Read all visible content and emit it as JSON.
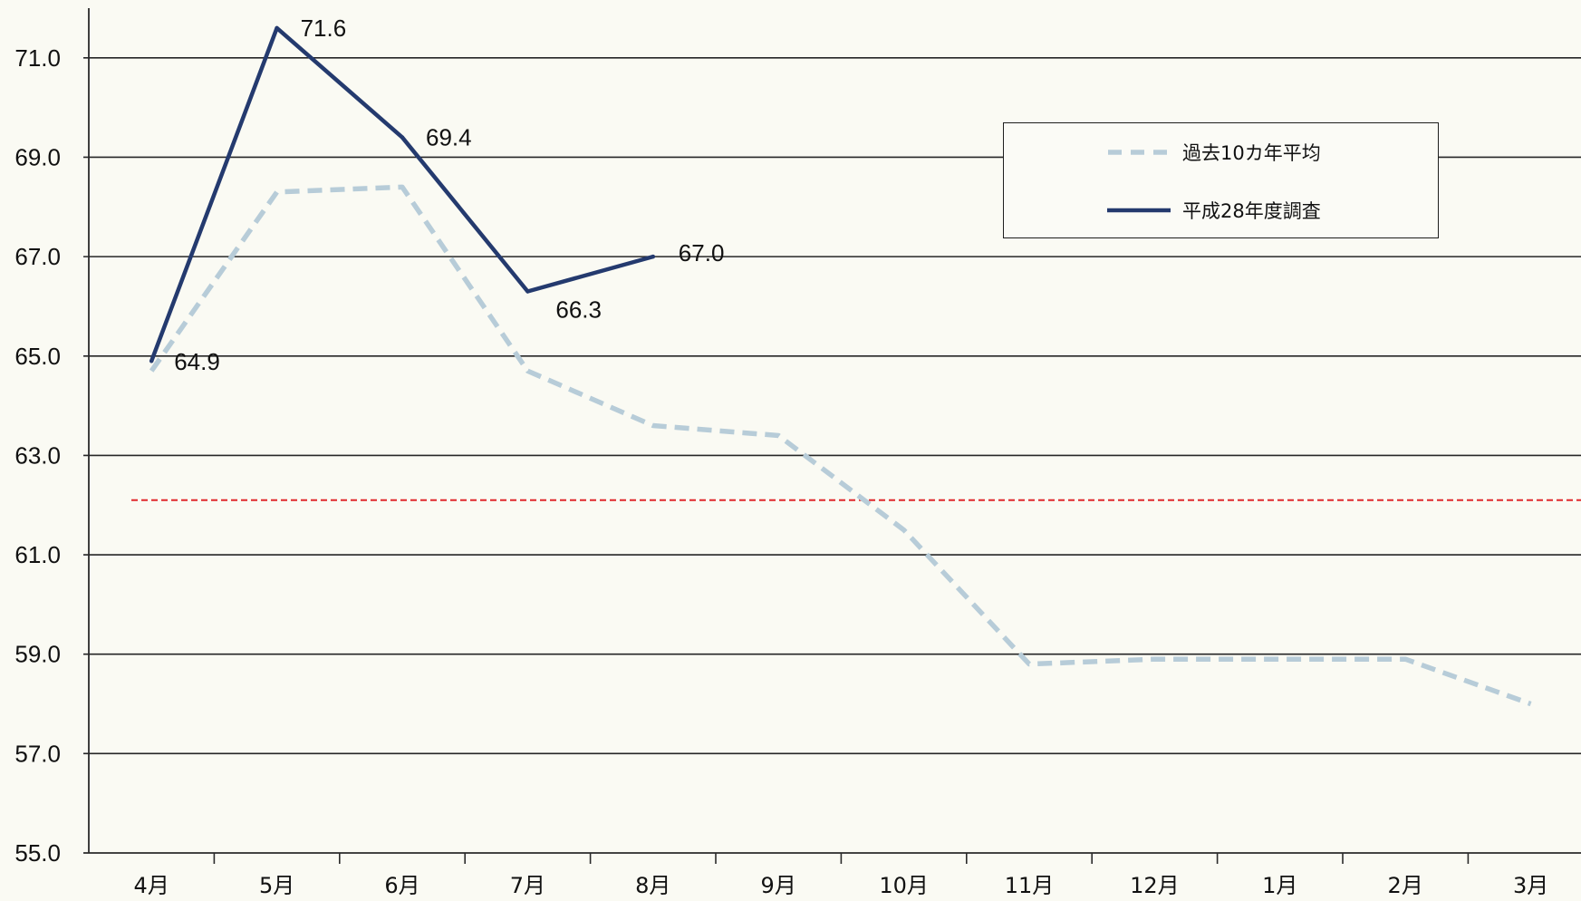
{
  "colors": {
    "background": "#fafaf3",
    "grid": "#262626",
    "axis": "#2a2a2a",
    "text": "#111111",
    "legend_border": "#1e1e1e"
  },
  "chart_data": {
    "type": "line",
    "categories": [
      "4月",
      "5月",
      "6月",
      "7月",
      "8月",
      "9月",
      "10月",
      "11月",
      "12月",
      "1月",
      "2月",
      "3月"
    ],
    "y_ticks": [
      "55.0",
      "57.0",
      "59.0",
      "61.0",
      "63.0",
      "65.0",
      "67.0",
      "69.0",
      "71.0"
    ],
    "ylim": [
      55,
      72
    ],
    "grid": true,
    "legend": {
      "placement": "top-right"
    },
    "series": [
      {
        "name": "過去10カ年平均",
        "style": "dashed",
        "color": "#b7ccd8",
        "values": [
          64.7,
          68.3,
          68.4,
          64.7,
          63.6,
          63.4,
          61.5,
          58.8,
          58.9,
          58.9,
          58.9,
          58.0
        ]
      },
      {
        "name": "平成28年度調査",
        "style": "solid",
        "color": "#243a6e",
        "values": [
          64.9,
          71.6,
          69.4,
          66.3,
          67.0,
          null,
          null,
          null,
          null,
          null,
          null,
          null
        ],
        "data_labels": [
          "64.9",
          "71.6",
          "69.4",
          "66.3",
          "67.0"
        ]
      }
    ],
    "reference_lines": [
      {
        "value": 62.1,
        "style": "dashed",
        "color": "#e0282c"
      }
    ]
  }
}
